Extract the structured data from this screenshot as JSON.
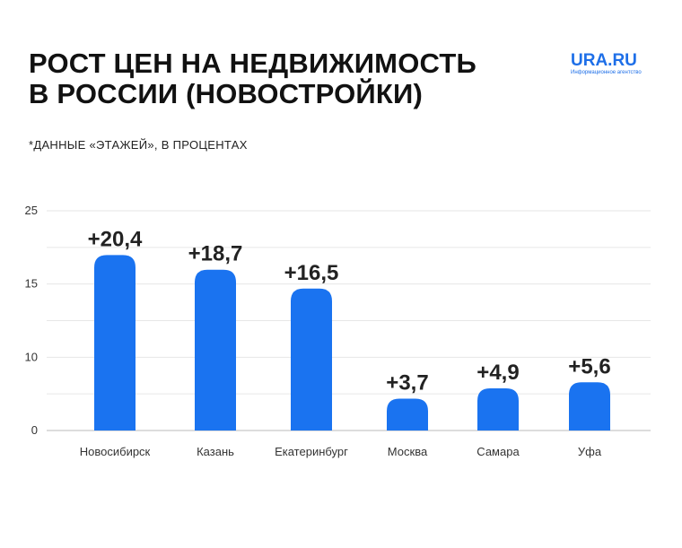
{
  "logo": {
    "name": "URA.RU",
    "tagline": "Информационное агентство"
  },
  "chart_data": {
    "type": "bar",
    "title": "РОСТ ЦЕН НА НЕДВИЖИМОСТЬ В РОССИИ (НОВОСТРОЙКИ)",
    "title_lines": [
      "РОСТ ЦЕН НА НЕДВИЖИМОСТЬ",
      "В РОССИИ (НОВОСТРОЙКИ)"
    ],
    "subtitle": "*ДАННЫЕ «ЭТАЖЕЙ», В ПРОЦЕНТАХ",
    "categories": [
      "Новосибирск",
      "Казань",
      "Екатеринбург",
      "Москва",
      "Самара",
      "Уфа"
    ],
    "values": [
      20.4,
      18.7,
      16.5,
      3.7,
      4.9,
      5.6
    ],
    "data_labels": [
      "+20,4",
      "+18,7",
      "+16,5",
      "+3,7",
      "+4,9",
      "+5,6"
    ],
    "y_ticks": [
      "25",
      "15",
      "10",
      "0"
    ],
    "ylim": [
      0,
      25
    ],
    "xlabel": "",
    "ylabel": "",
    "grid": true,
    "bar_color": "#1a73f0"
  }
}
